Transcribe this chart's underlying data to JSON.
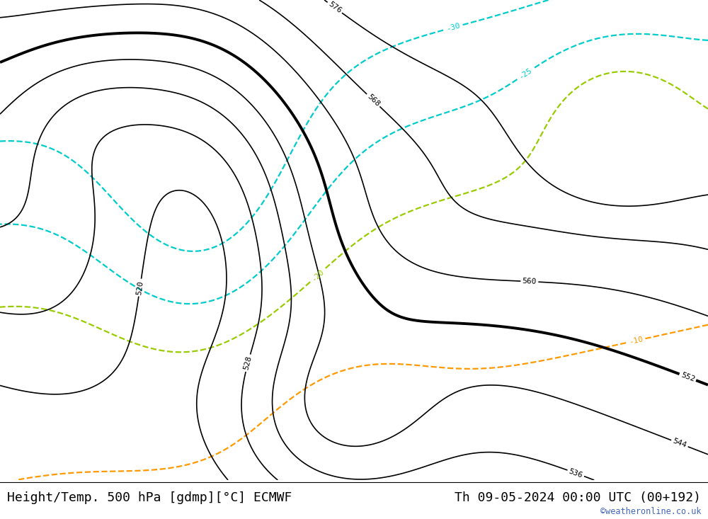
{
  "title_left": "Height/Temp. 500 hPa [gdmp][°C] ECMWF",
  "title_right": "Th 09-05-2024 00:00 UTC (00+192)",
  "watermark": "©weatheronline.co.uk",
  "land_color_low": [
    200,
    240,
    200
  ],
  "land_color_high": [
    200,
    240,
    200
  ],
  "sea_color": [
    210,
    218,
    228
  ],
  "bg_gray": [
    220,
    220,
    220
  ],
  "title_fontsize": 13,
  "watermark_color": "#4466bb",
  "height_levels": [
    520,
    528,
    536,
    544,
    552,
    560,
    568,
    576
  ],
  "bold_level": 552,
  "temp_cyan_levels": [
    -30,
    -25
  ],
  "temp_green_levels": [
    -20
  ],
  "temp_orange_levels": [
    -10
  ],
  "lon_min": -28,
  "lon_max": 42,
  "lat_min": 27,
  "lat_max": 73
}
